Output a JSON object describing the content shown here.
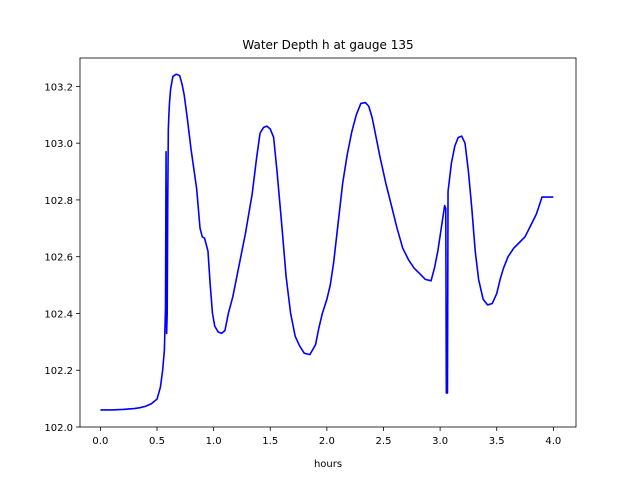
{
  "chart_data": {
    "type": "line",
    "title": "Water Depth h at gauge 135",
    "xlabel": "hours",
    "ylabel": "",
    "xlim": [
      -0.18,
      4.2
    ],
    "ylim": [
      102.0,
      103.3
    ],
    "xticks": [
      0.0,
      0.5,
      1.0,
      1.5,
      2.0,
      2.5,
      3.0,
      3.5,
      4.0
    ],
    "xtick_labels": [
      "0.0",
      "0.5",
      "1.0",
      "1.5",
      "2.0",
      "2.5",
      "3.0",
      "3.5",
      "4.0"
    ],
    "yticks": [
      102.0,
      102.2,
      102.4,
      102.6,
      102.8,
      103.0,
      103.2
    ],
    "ytick_labels": [
      "102.0",
      "102.2",
      "102.4",
      "102.6",
      "102.8",
      "103.0",
      "103.2"
    ],
    "grid": false,
    "series": [
      {
        "name": "",
        "color": "#0000ff",
        "x": [
          0.0,
          0.1,
          0.2,
          0.3,
          0.35,
          0.4,
          0.45,
          0.5,
          0.53,
          0.55,
          0.565,
          0.575,
          0.58,
          0.585,
          0.59,
          0.595,
          0.6,
          0.605,
          0.61,
          0.62,
          0.64,
          0.67,
          0.7,
          0.72,
          0.74,
          0.77,
          0.8,
          0.85,
          0.88,
          0.9,
          0.92,
          0.95,
          0.97,
          0.99,
          1.01,
          1.04,
          1.07,
          1.1,
          1.13,
          1.17,
          1.22,
          1.28,
          1.34,
          1.38,
          1.41,
          1.44,
          1.47,
          1.5,
          1.53,
          1.56,
          1.6,
          1.64,
          1.68,
          1.72,
          1.76,
          1.8,
          1.85,
          1.9,
          1.93,
          1.96,
          2.0,
          2.03,
          2.06,
          2.1,
          2.14,
          2.18,
          2.22,
          2.26,
          2.3,
          2.34,
          2.37,
          2.4,
          2.43,
          2.47,
          2.52,
          2.57,
          2.62,
          2.67,
          2.72,
          2.77,
          2.82,
          2.87,
          2.92,
          2.95,
          2.98,
          3.01,
          3.04,
          3.05,
          3.055,
          3.06,
          3.065,
          3.07,
          3.1,
          3.13,
          3.16,
          3.19,
          3.22,
          3.25,
          3.28,
          3.31,
          3.34,
          3.38,
          3.42,
          3.46,
          3.5,
          3.53,
          3.56,
          3.6,
          3.65,
          3.7,
          3.75,
          3.8,
          3.85,
          3.9,
          3.95,
          4.0
        ],
        "y": [
          102.06,
          102.06,
          102.062,
          102.065,
          102.068,
          102.073,
          102.082,
          102.098,
          102.14,
          102.2,
          102.27,
          102.42,
          102.97,
          102.33,
          102.4,
          102.8,
          103.05,
          103.1,
          103.14,
          103.19,
          103.235,
          103.243,
          103.238,
          103.21,
          103.17,
          103.08,
          102.98,
          102.84,
          102.7,
          102.67,
          102.665,
          102.62,
          102.5,
          102.4,
          102.355,
          102.335,
          102.33,
          102.34,
          102.4,
          102.46,
          102.56,
          102.68,
          102.82,
          102.95,
          103.035,
          103.055,
          103.06,
          103.05,
          103.02,
          102.9,
          102.72,
          102.53,
          102.4,
          102.32,
          102.285,
          102.26,
          102.255,
          102.29,
          102.35,
          102.4,
          102.45,
          102.5,
          102.58,
          102.72,
          102.86,
          102.96,
          103.04,
          103.1,
          103.14,
          103.143,
          103.13,
          103.09,
          103.03,
          102.95,
          102.86,
          102.78,
          102.7,
          102.63,
          102.59,
          102.56,
          102.54,
          102.52,
          102.515,
          102.56,
          102.62,
          102.7,
          102.78,
          102.77,
          102.12,
          102.12,
          102.12,
          102.83,
          102.93,
          102.99,
          103.02,
          103.025,
          103.0,
          102.9,
          102.77,
          102.62,
          102.52,
          102.45,
          102.43,
          102.435,
          102.47,
          102.52,
          102.56,
          102.6,
          102.63,
          102.65,
          102.67,
          102.71,
          102.75,
          102.81,
          102.81,
          102.81
        ]
      }
    ]
  }
}
